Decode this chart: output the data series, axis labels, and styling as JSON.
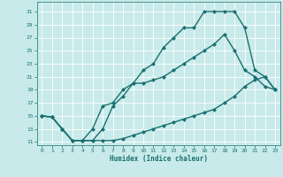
{
  "bg_color": "#c8eaea",
  "grid_color": "#ffffff",
  "line_color": "#1a7070",
  "markersize": 2.5,
  "linewidth": 1.0,
  "xlabel": "Humidex (Indice chaleur)",
  "xlim": [
    -0.5,
    23.5
  ],
  "ylim": [
    10.5,
    32.5
  ],
  "xticks": [
    0,
    1,
    2,
    3,
    4,
    5,
    6,
    7,
    8,
    9,
    10,
    11,
    12,
    13,
    14,
    15,
    16,
    17,
    18,
    19,
    20,
    21,
    22,
    23
  ],
  "yticks": [
    11,
    13,
    15,
    17,
    19,
    21,
    23,
    25,
    27,
    29,
    31
  ],
  "curve1_x": [
    0,
    1,
    2,
    3,
    4,
    5,
    6,
    7,
    8,
    9,
    10,
    11,
    12,
    13,
    14,
    15,
    16,
    17,
    18,
    19,
    20,
    21,
    22,
    23
  ],
  "curve1_y": [
    15,
    14.8,
    13,
    11.2,
    11.2,
    13,
    16.5,
    17,
    19,
    20,
    20,
    20.5,
    21,
    22,
    23,
    24,
    25,
    26,
    27.5,
    25,
    22,
    21,
    19.5,
    19
  ],
  "curve2_x": [
    0,
    1,
    2,
    3,
    4,
    5,
    6,
    7,
    8,
    9,
    10,
    11,
    12,
    13,
    14,
    15,
    16,
    17,
    18,
    19,
    20,
    21,
    22,
    23
  ],
  "curve2_y": [
    15,
    14.8,
    13,
    11.2,
    11.2,
    11.2,
    13,
    16.5,
    18,
    20,
    22,
    23,
    25.5,
    27,
    28.5,
    28.5,
    31,
    31,
    31,
    31,
    28.5,
    22,
    21,
    19
  ],
  "curve3_x": [
    0,
    1,
    2,
    3,
    4,
    5,
    6,
    7,
    8,
    9,
    10,
    11,
    12,
    13,
    14,
    15,
    16,
    17,
    18,
    19,
    20,
    21,
    22,
    23
  ],
  "curve3_y": [
    15,
    14.8,
    13,
    11.2,
    11.2,
    11.2,
    11.2,
    11.2,
    11.5,
    12,
    12.5,
    13,
    13.5,
    14,
    14.5,
    15,
    15.5,
    16,
    17,
    18,
    19.5,
    20.5,
    21,
    19
  ]
}
